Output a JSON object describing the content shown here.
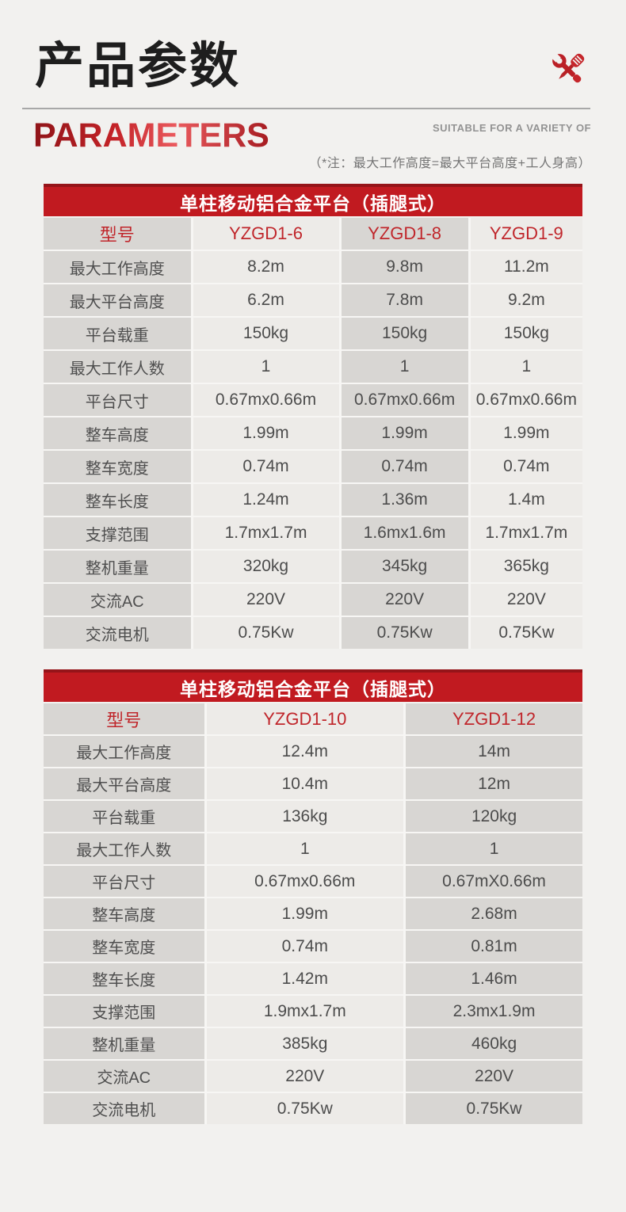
{
  "header": {
    "title_cn": "产品参数",
    "title_en": "PARAMETERS",
    "tagline": "SUITABLE FOR A VARIETY OF",
    "note": "（*注：最大工作高度=最大平台高度+工人身高）",
    "icon": "wrench-screwdriver-icon"
  },
  "colors": {
    "accent_red": "#c11a20",
    "accent_red_dark": "#951419",
    "red_text": "#c0262b",
    "page_bg": "#f2f1ef",
    "cell_light": "#edebe8",
    "cell_dark": "#d8d6d3",
    "text": "#4c4c4c"
  },
  "tables": [
    {
      "title": "单柱移动铝合金平台（插腿式）",
      "model_label": "型号",
      "models": [
        "YZGD1-6",
        "YZGD1-8",
        "YZGD1-9"
      ],
      "rows": [
        {
          "label": "最大工作高度",
          "values": [
            "8.2m",
            "9.8m",
            "11.2m"
          ]
        },
        {
          "label": "最大平台高度",
          "values": [
            "6.2m",
            "7.8m",
            "9.2m"
          ]
        },
        {
          "label": "平台载重",
          "values": [
            "150kg",
            "150kg",
            "150kg"
          ]
        },
        {
          "label": "最大工作人数",
          "values": [
            "1",
            "1",
            "1"
          ]
        },
        {
          "label": "平台尺寸",
          "values": [
            "0.67mx0.66m",
            "0.67mx0.66m",
            "0.67mx0.66m"
          ]
        },
        {
          "label": "整车高度",
          "values": [
            "1.99m",
            "1.99m",
            "1.99m"
          ]
        },
        {
          "label": "整车宽度",
          "values": [
            "0.74m",
            "0.74m",
            "0.74m"
          ]
        },
        {
          "label": "整车长度",
          "values": [
            "1.24m",
            "1.36m",
            "1.4m"
          ]
        },
        {
          "label": "支撑范围",
          "values": [
            "1.7mx1.7m",
            "1.6mx1.6m",
            "1.7mx1.7m"
          ]
        },
        {
          "label": "整机重量",
          "values": [
            "320kg",
            "345kg",
            "365kg"
          ]
        },
        {
          "label": "交流AC",
          "values": [
            "220V",
            "220V",
            "220V"
          ]
        },
        {
          "label": "交流电机",
          "values": [
            "0.75Kw",
            "0.75Kw",
            "0.75Kw"
          ]
        }
      ]
    },
    {
      "title": "单柱移动铝合金平台（插腿式）",
      "model_label": "型号",
      "models": [
        "YZGD1-10",
        "YZGD1-12"
      ],
      "rows": [
        {
          "label": "最大工作高度",
          "values": [
            "12.4m",
            "14m"
          ]
        },
        {
          "label": "最大平台高度",
          "values": [
            "10.4m",
            "12m"
          ]
        },
        {
          "label": "平台载重",
          "values": [
            "136kg",
            "120kg"
          ]
        },
        {
          "label": "最大工作人数",
          "values": [
            "1",
            "1"
          ]
        },
        {
          "label": "平台尺寸",
          "values": [
            "0.67mx0.66m",
            "0.67mX0.66m"
          ]
        },
        {
          "label": "整车高度",
          "values": [
            "1.99m",
            "2.68m"
          ]
        },
        {
          "label": "整车宽度",
          "values": [
            "0.74m",
            "0.81m"
          ]
        },
        {
          "label": "整车长度",
          "values": [
            "1.42m",
            "1.46m"
          ]
        },
        {
          "label": "支撑范围",
          "values": [
            "1.9mx1.7m",
            "2.3mx1.9m"
          ]
        },
        {
          "label": "整机重量",
          "values": [
            "385kg",
            "460kg"
          ]
        },
        {
          "label": "交流AC",
          "values": [
            "220V",
            "220V"
          ]
        },
        {
          "label": "交流电机",
          "values": [
            "0.75Kw",
            "0.75Kw"
          ]
        }
      ]
    }
  ]
}
